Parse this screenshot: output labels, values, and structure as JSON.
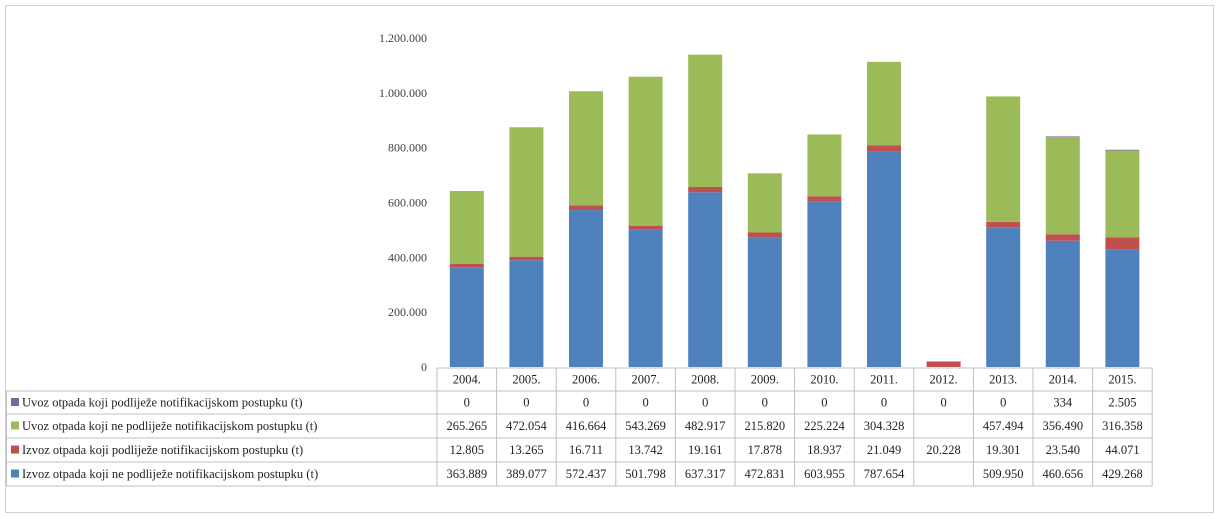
{
  "chart_data": {
    "type": "bar",
    "stacked": true,
    "title": "",
    "xlabel": "",
    "ylabel": "",
    "ylim": [
      0,
      1200000
    ],
    "yticks": [
      "0",
      "200.000",
      "400.000",
      "600.000",
      "800.000",
      "1.000.000",
      "1.200.000"
    ],
    "grid": false,
    "legend": "data-table-below",
    "categories": [
      "2004.",
      "2005.",
      "2006.",
      "2007.",
      "2008.",
      "2009.",
      "2010.",
      "2011.",
      "2012.",
      "2013.",
      "2014.",
      "2015."
    ],
    "series": [
      {
        "name": "Izvoz otpada koji ne podliježe notifikacijskom postupku (t)",
        "color": "#4f81bd",
        "values": [
          363889,
          389077,
          572437,
          501798,
          637317,
          472831,
          603955,
          787654,
          null,
          509950,
          460656,
          429268
        ],
        "labels": [
          "363.889",
          "389.077",
          "572.437",
          "501.798",
          "637.317",
          "472.831",
          "603.955",
          "787.654",
          "",
          "509.950",
          "460.656",
          "429.268"
        ]
      },
      {
        "name": "Izvoz otpada koji podliježe notifikacijskom postupku (t)",
        "color": "#c0504d",
        "values": [
          12805,
          13265,
          16711,
          13742,
          19161,
          17878,
          18937,
          21049,
          20228,
          19301,
          23540,
          44071
        ],
        "labels": [
          "12.805",
          "13.265",
          "16.711",
          "13.742",
          "19.161",
          "17.878",
          "18.937",
          "21.049",
          "20.228",
          "19.301",
          "23.540",
          "44.071"
        ]
      },
      {
        "name": "Uvoz otpada koji ne podliježe notifikacijskom postupku (t)",
        "color": "#9bbb59",
        "values": [
          265265,
          472054,
          416664,
          543269,
          482917,
          215820,
          225224,
          304328,
          null,
          457494,
          356490,
          316358
        ],
        "labels": [
          "265.265",
          "472.054",
          "416.664",
          "543.269",
          "482.917",
          "215.820",
          "225.224",
          "304.328",
          "",
          "457.494",
          "356.490",
          "316.358"
        ]
      },
      {
        "name": "Uvoz otpada koji podliježe notifikacijskom postupku (t)",
        "color": "#8064a2",
        "values": [
          0,
          0,
          0,
          0,
          0,
          0,
          0,
          0,
          0,
          0,
          334,
          2505
        ],
        "labels": [
          "0",
          "0",
          "0",
          "0",
          "0",
          "0",
          "0",
          "0",
          "0",
          "0",
          "334",
          "2.505"
        ]
      }
    ]
  }
}
